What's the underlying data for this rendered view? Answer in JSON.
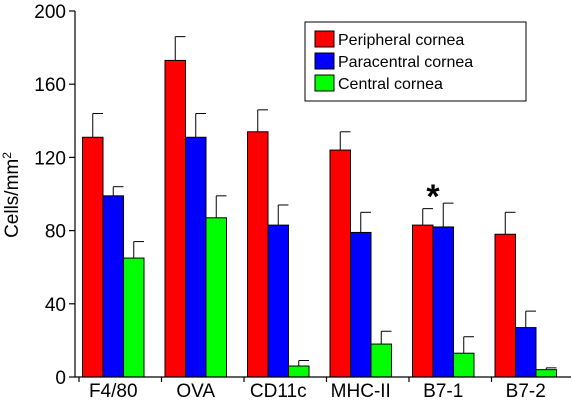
{
  "chart_data": {
    "type": "bar",
    "categories": [
      "F4/80",
      "OVA",
      "CD11c",
      "MHC-II",
      "B7-1",
      "B7-2"
    ],
    "series": [
      {
        "name": "Peripheral cornea",
        "color": "#ff0000",
        "values": [
          131,
          173,
          134,
          124,
          83,
          78
        ],
        "errors": [
          13,
          13,
          12,
          10,
          9,
          12
        ]
      },
      {
        "name": "Paracentral cornea",
        "color": "#0000ff",
        "values": [
          99,
          131,
          83,
          79,
          82,
          27
        ],
        "errors": [
          5,
          13,
          11,
          11,
          13,
          9
        ]
      },
      {
        "name": "Central cornea",
        "color": "#00ff00",
        "values": [
          65,
          87,
          6,
          18,
          13,
          4
        ],
        "errors": [
          9,
          12,
          3,
          7,
          9,
          1
        ]
      }
    ],
    "ylabel": "Cells/mm",
    "ylabel_superscript": "2",
    "ylim": [
      0,
      200
    ],
    "yticks": [
      0,
      40,
      80,
      120,
      160,
      200
    ],
    "grid": false,
    "legend_position": "top-right",
    "annotations": [
      {
        "text": "*",
        "category": "B7-1"
      }
    ]
  }
}
